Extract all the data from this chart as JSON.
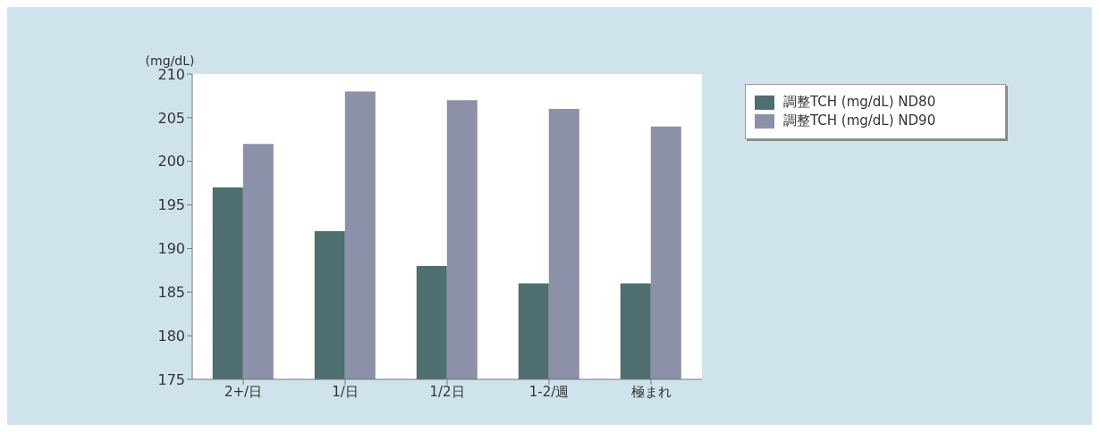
{
  "chart_data": {
    "type": "bar",
    "ylabel": "(mg/dL)",
    "categories": [
      "2+/日",
      "1/日",
      "1/2日",
      "1-2/週",
      "極まれ"
    ],
    "series": [
      {
        "name": "調整TCH (mg/dL) ND80",
        "color": "#4f6e70",
        "values": [
          197,
          192,
          188,
          186,
          186
        ]
      },
      {
        "name": "調整TCH (mg/dL) ND90",
        "color": "#8c90a8",
        "values": [
          202,
          208,
          207,
          206,
          204
        ]
      }
    ],
    "ylim": [
      175,
      210
    ],
    "yticks": [
      175,
      180,
      185,
      190,
      195,
      200,
      205,
      210
    ],
    "grid": false,
    "legend": "top right"
  }
}
